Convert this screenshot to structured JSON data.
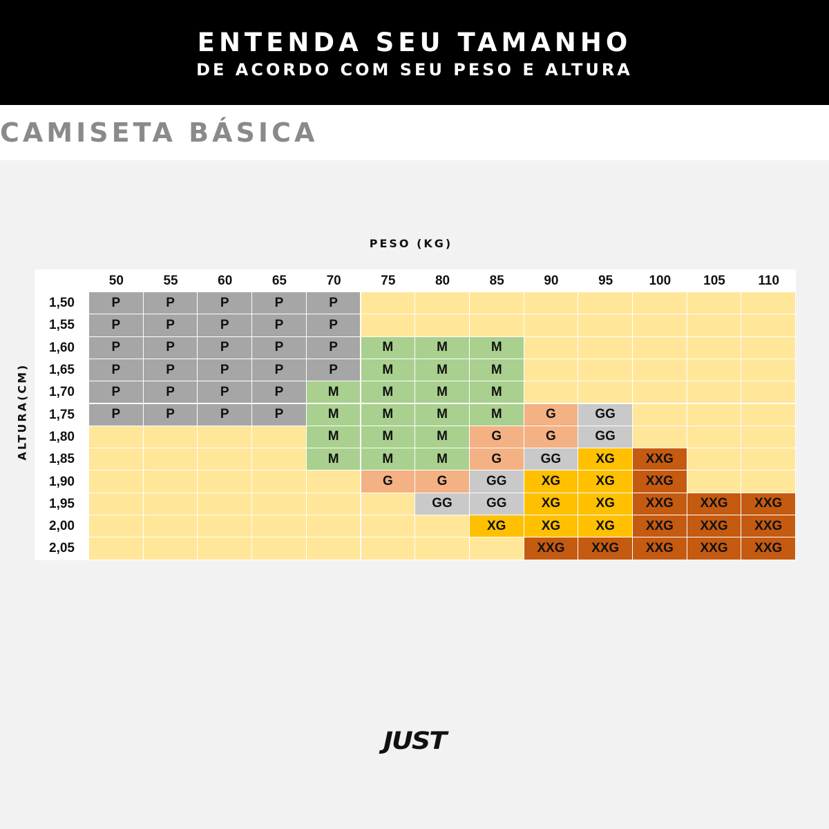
{
  "header": {
    "line1": "ENTENDA SEU TAMANHO",
    "line2": "DE ACORDO COM SEU PESO E ALTURA"
  },
  "product_title": "CAMISETA BÁSICA",
  "table": {
    "x_axis_label": "PESO (KG)",
    "y_axis_label": "ALTURA(CM)",
    "weights": [
      "50",
      "55",
      "60",
      "65",
      "70",
      "75",
      "80",
      "85",
      "90",
      "95",
      "100",
      "105",
      "110"
    ],
    "heights": [
      "1,50",
      "1,55",
      "1,60",
      "1,65",
      "1,70",
      "1,75",
      "1,80",
      "1,85",
      "1,90",
      "1,95",
      "2,00",
      "2,05"
    ],
    "rows": [
      [
        "P",
        "P",
        "P",
        "P",
        "P",
        "",
        "",
        "",
        "",
        "",
        "",
        "",
        ""
      ],
      [
        "P",
        "P",
        "P",
        "P",
        "P",
        "",
        "",
        "",
        "",
        "",
        "",
        "",
        ""
      ],
      [
        "P",
        "P",
        "P",
        "P",
        "P",
        "M",
        "M",
        "M",
        "",
        "",
        "",
        "",
        ""
      ],
      [
        "P",
        "P",
        "P",
        "P",
        "P",
        "M",
        "M",
        "M",
        "",
        "",
        "",
        "",
        ""
      ],
      [
        "P",
        "P",
        "P",
        "P",
        "M",
        "M",
        "M",
        "M",
        "",
        "",
        "",
        "",
        ""
      ],
      [
        "P",
        "P",
        "P",
        "P",
        "M",
        "M",
        "M",
        "M",
        "G",
        "GG",
        "",
        "",
        ""
      ],
      [
        "",
        "",
        "",
        "",
        "M",
        "M",
        "M",
        "G",
        "G",
        "GG",
        "",
        "",
        ""
      ],
      [
        "",
        "",
        "",
        "",
        "M",
        "M",
        "M",
        "G",
        "GG",
        "XG",
        "XXG",
        "",
        ""
      ],
      [
        "",
        "",
        "",
        "",
        "",
        "G",
        "G",
        "GG",
        "XG",
        "XG",
        "XXG",
        "",
        ""
      ],
      [
        "",
        "",
        "",
        "",
        "",
        "",
        "GG",
        "GG",
        "XG",
        "XG",
        "XXG",
        "XXG",
        "XXG"
      ],
      [
        "",
        "",
        "",
        "",
        "",
        "",
        "",
        "XG",
        "XG",
        "XG",
        "XXG",
        "XXG",
        "XXG"
      ],
      [
        "",
        "",
        "",
        "",
        "",
        "",
        "",
        "",
        "XXG",
        "XXG",
        "XXG",
        "XXG",
        "XXG"
      ]
    ]
  },
  "size_colors": {
    "P": "#a6a6a6",
    "M": "#a9d08e",
    "G": "#f4b183",
    "GG": "#c9c9c9",
    "XG": "#ffc000",
    "XXG": "#c55a11",
    "empty": "#ffe699"
  },
  "logo": "JUST"
}
